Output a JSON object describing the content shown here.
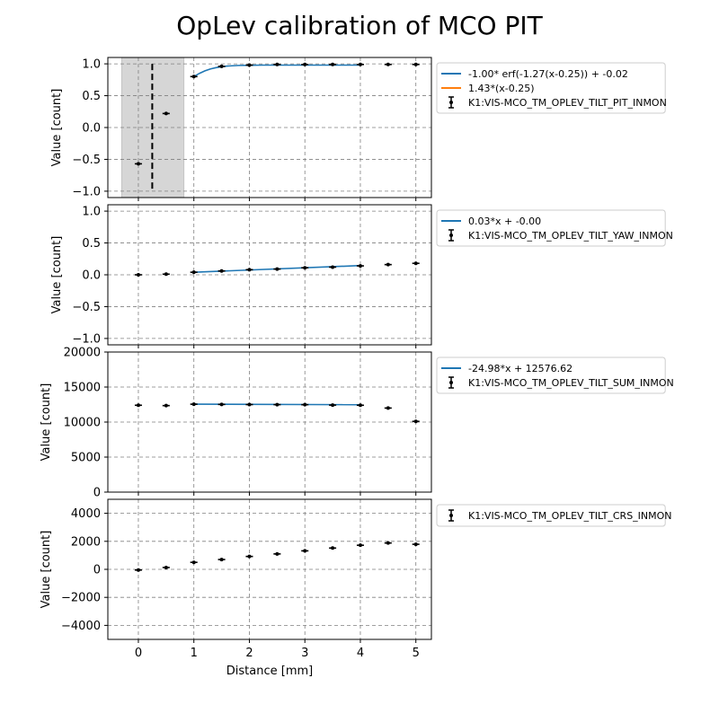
{
  "chart_data": {
    "title": "OpLev calibration of MCO PIT",
    "shared_xlabel": "Distance [mm]",
    "shared_xticks": [
      0,
      1,
      2,
      3,
      4,
      5
    ],
    "panels": [
      {
        "type": "scatter",
        "ylabel": "Value [count]",
        "ylim": [
          -1.1,
          1.1
        ],
        "yticks": [
          1.0,
          0.5,
          0.0,
          -0.5,
          -1.0
        ],
        "ytick_labels": [
          "1.0",
          "0.5",
          "0.0",
          "−0.5",
          "−1.0"
        ],
        "grid": true,
        "legend_placement": "outside-right",
        "shaded_region": [
          -0.3,
          0.82
        ],
        "vline_x": 0.25,
        "series": [
          {
            "name": "K1:VIS-MCO_TM_OPLEV_TILT_PIT_INMON",
            "kind": "errorbar",
            "color": "#000000",
            "x": [
              0,
              0.5,
              1,
              1.5,
              2,
              2.5,
              3,
              3.5,
              4,
              4.5,
              5
            ],
            "y": [
              -0.57,
              0.22,
              0.8,
              0.96,
              0.98,
              0.99,
              0.99,
              0.99,
              0.99,
              0.99,
              0.99
            ]
          },
          {
            "name": "-1.00* erf(-1.27(x-0.25)) + -0.02",
            "kind": "line",
            "color": "#1f77b4",
            "x": [
              1.0,
              1.1,
              1.2,
              1.3,
              1.4,
              1.5,
              1.6,
              1.8,
              2.0,
              2.25,
              2.5,
              3.0,
              3.5,
              4.0
            ],
            "y": [
              0.8,
              0.85,
              0.89,
              0.92,
              0.94,
              0.955,
              0.965,
              0.975,
              0.978,
              0.98,
              0.98,
              0.98,
              0.98,
              0.98
            ]
          },
          {
            "name": "1.43*(x-0.25)",
            "kind": "line",
            "color": "#ff7f0e",
            "x": [],
            "y": []
          }
        ]
      },
      {
        "type": "scatter",
        "ylabel": "Value [count]",
        "ylim": [
          -1.1,
          1.1
        ],
        "yticks": [
          1.0,
          0.5,
          0.0,
          -0.5,
          -1.0
        ],
        "ytick_labels": [
          "1.0",
          "0.5",
          "0.0",
          "−0.5",
          "−1.0"
        ],
        "grid": true,
        "legend_placement": "outside-right",
        "series": [
          {
            "name": "K1:VIS-MCO_TM_OPLEV_TILT_YAW_INMON",
            "kind": "errorbar",
            "color": "#000000",
            "x": [
              0,
              0.5,
              1,
              1.5,
              2,
              2.5,
              3,
              3.5,
              4,
              4.5,
              5
            ],
            "y": [
              0.0,
              0.01,
              0.04,
              0.06,
              0.08,
              0.09,
              0.11,
              0.12,
              0.14,
              0.16,
              0.18
            ]
          },
          {
            "name": "0.03*x + -0.00",
            "kind": "line",
            "color": "#1f77b4",
            "x": [
              1,
              4
            ],
            "y": [
              0.04,
              0.145
            ]
          }
        ]
      },
      {
        "type": "scatter",
        "ylabel": "Value [count]",
        "ylim": [
          0,
          20000
        ],
        "yticks": [
          0,
          5000,
          10000,
          15000,
          20000
        ],
        "ytick_labels": [
          "0",
          "5000",
          "10000",
          "15000",
          "20000"
        ],
        "grid": true,
        "legend_placement": "outside-right",
        "series": [
          {
            "name": "K1:VIS-MCO_TM_OPLEV_TILT_SUM_INMON",
            "kind": "errorbar",
            "color": "#000000",
            "x": [
              0,
              0.5,
              1,
              1.5,
              2,
              2.5,
              3,
              3.5,
              4,
              4.5,
              5
            ],
            "y": [
              12400,
              12350,
              12550,
              12520,
              12500,
              12490,
              12480,
              12420,
              12400,
              12000,
              10100
            ]
          },
          {
            "name": "-24.98*x + 12576.62",
            "kind": "line",
            "color": "#1f77b4",
            "x": [
              1,
              4
            ],
            "y": [
              12552,
              12477
            ]
          }
        ]
      },
      {
        "type": "scatter",
        "ylabel": "Value [count]",
        "ylim": [
          -5000,
          5000
        ],
        "yticks": [
          4000,
          2000,
          0,
          -2000,
          -4000
        ],
        "ytick_labels": [
          "4000",
          "2000",
          "0",
          "−2000",
          "−4000"
        ],
        "grid": true,
        "legend_placement": "outside-right",
        "xlabel": "Distance [mm]",
        "series": [
          {
            "name": "K1:VIS-MCO_TM_OPLEV_TILT_CRS_INMON",
            "kind": "errorbar",
            "color": "#000000",
            "x": [
              0,
              0.5,
              1,
              1.5,
              2,
              2.5,
              3,
              3.5,
              4,
              4.5,
              5
            ],
            "y": [
              -50,
              130,
              500,
              700,
              920,
              1100,
              1320,
              1520,
              1720,
              1880,
              1790
            ]
          }
        ]
      }
    ]
  }
}
